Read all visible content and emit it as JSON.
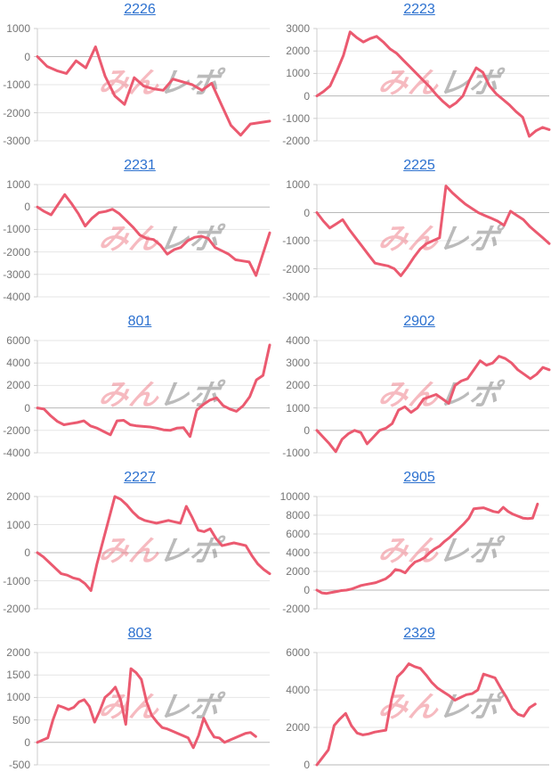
{
  "watermark": {
    "part1": "みん",
    "part2": "レポ",
    "part1_color": "#e95a6a",
    "part2_color": "#8a8a8a"
  },
  "colors": {
    "line": "#eb5a70",
    "title_link": "#2b70cf",
    "grid_line": "#e6e6e6",
    "zero_line": "#b8b8b8",
    "axis_line": "#cccccc",
    "tick_label": "#757575"
  },
  "chart_data": [
    {
      "type": "line",
      "title": "2226",
      "ticks": [
        1000,
        0,
        -1000,
        -2000,
        -3000
      ],
      "ylim": [
        -3000,
        1000
      ],
      "x_end": 1.0,
      "values": [
        0,
        -350,
        -500,
        -600,
        -150,
        -400,
        350,
        -700,
        -1400,
        -1700,
        -750,
        -1050,
        -1150,
        -1200,
        -800,
        -900,
        -1000,
        -1200,
        -950,
        -1700,
        -2450,
        -2800,
        -2400,
        -2350,
        -2300
      ]
    },
    {
      "type": "line",
      "title": "2223",
      "ticks": [
        3000,
        2000,
        1000,
        0,
        -1000,
        -2000
      ],
      "ylim": [
        -2000,
        3000
      ],
      "x_end": 1.0,
      "values": [
        0,
        200,
        450,
        1100,
        1800,
        2850,
        2600,
        2400,
        2550,
        2650,
        2400,
        2100,
        1900,
        1600,
        1300,
        1000,
        700,
        400,
        50,
        -250,
        -500,
        -300,
        0,
        700,
        1250,
        1050,
        450,
        100,
        -150,
        -400,
        -700,
        -950,
        -1800,
        -1550,
        -1400,
        -1500
      ]
    },
    {
      "type": "line",
      "title": "2231",
      "ticks": [
        1000,
        0,
        -1000,
        -2000,
        -3000,
        -4000
      ],
      "ylim": [
        -4000,
        1000
      ],
      "x_end": 1.0,
      "values": [
        0,
        -200,
        -350,
        100,
        550,
        150,
        -300,
        -850,
        -500,
        -250,
        -200,
        -100,
        -300,
        -600,
        -900,
        -1250,
        -1400,
        -1450,
        -1700,
        -2100,
        -1900,
        -1800,
        -1500,
        -1350,
        -1300,
        -1400,
        -1800,
        -1950,
        -2100,
        -2350,
        -2400,
        -2450,
        -3050,
        -2100,
        -1150
      ]
    },
    {
      "type": "line",
      "title": "2225",
      "ticks": [
        1000,
        0,
        -1000,
        -2000,
        -3000
      ],
      "ylim": [
        -3000,
        1000
      ],
      "x_end": 1.0,
      "values": [
        0,
        -300,
        -550,
        -400,
        -250,
        -600,
        -900,
        -1200,
        -1500,
        -1800,
        -1850,
        -1900,
        -2000,
        -2250,
        -1950,
        -1600,
        -1300,
        -1100,
        -1000,
        -900,
        950,
        700,
        500,
        300,
        150,
        0,
        -100,
        -200,
        -300,
        -450,
        50,
        -100,
        -250,
        -500,
        -700,
        -900,
        -1100
      ]
    },
    {
      "type": "line",
      "title": "801",
      "ticks": [
        6000,
        4000,
        2000,
        0,
        -2000,
        -4000
      ],
      "ylim": [
        -4000,
        6000
      ],
      "x_end": 1.0,
      "values": [
        0,
        -100,
        -700,
        -1200,
        -1500,
        -1400,
        -1300,
        -1150,
        -1600,
        -1800,
        -2100,
        -2400,
        -1150,
        -1100,
        -1500,
        -1600,
        -1650,
        -1700,
        -1800,
        -1950,
        -2000,
        -1800,
        -1750,
        -2550,
        -200,
        300,
        700,
        900,
        200,
        -100,
        -300,
        200,
        1000,
        2500,
        2900,
        5600
      ]
    },
    {
      "type": "line",
      "title": "2902",
      "ticks": [
        4000,
        3000,
        2000,
        1000,
        0,
        -1000
      ],
      "ylim": [
        -1000,
        4000
      ],
      "x_end": 1.0,
      "values": [
        0,
        -300,
        -600,
        -950,
        -400,
        -150,
        0,
        -100,
        -600,
        -300,
        0,
        100,
        300,
        900,
        1050,
        800,
        1000,
        1400,
        1500,
        1600,
        1400,
        1200,
        2000,
        2200,
        2300,
        2700,
        3100,
        2900,
        3000,
        3300,
        3200,
        3000,
        2700,
        2500,
        2300,
        2500,
        2800,
        2700
      ]
    },
    {
      "type": "line",
      "title": "2227",
      "ticks": [
        2000,
        1000,
        0,
        -1000,
        -2000
      ],
      "ylim": [
        -2000,
        2000
      ],
      "x_end": 1.0,
      "values": [
        0,
        -150,
        -350,
        -550,
        -750,
        -800,
        -900,
        -950,
        -1100,
        -1350,
        -400,
        400,
        1200,
        2000,
        1900,
        1700,
        1450,
        1250,
        1150,
        1100,
        1050,
        1100,
        1150,
        1100,
        1050,
        1650,
        1250,
        800,
        750,
        850,
        500,
        250,
        300,
        350,
        300,
        250,
        -100,
        -400,
        -600,
        -750
      ]
    },
    {
      "type": "line",
      "title": "2905",
      "ticks": [
        10000,
        8000,
        6000,
        4000,
        2000,
        0,
        -2000
      ],
      "ylim": [
        -2000,
        10000
      ],
      "x_end": 0.95,
      "values": [
        0,
        -300,
        -350,
        -250,
        -150,
        -50,
        0,
        100,
        300,
        500,
        600,
        700,
        800,
        1000,
        1200,
        1600,
        2200,
        2100,
        1850,
        2500,
        3000,
        3200,
        3500,
        4000,
        4400,
        4700,
        5200,
        5600,
        6100,
        6600,
        7100,
        7700,
        8700,
        8750,
        8800,
        8600,
        8400,
        8300,
        8850,
        8400,
        8100,
        7900,
        7700,
        7650,
        7700,
        9200
      ]
    },
    {
      "type": "line",
      "title": "803",
      "ticks": [
        2000,
        1500,
        1000,
        500,
        0,
        -500
      ],
      "ylim": [
        -500,
        2000
      ],
      "x_end": 0.94,
      "values": [
        0,
        50,
        100,
        500,
        820,
        780,
        730,
        780,
        900,
        950,
        800,
        450,
        700,
        1000,
        1100,
        1230,
        950,
        400,
        1640,
        1550,
        1400,
        900,
        600,
        450,
        330,
        300,
        250,
        200,
        150,
        100,
        -120,
        150,
        540,
        300,
        120,
        100,
        0,
        50,
        100,
        150,
        200,
        220,
        130
      ]
    },
    {
      "type": "line",
      "title": "2329",
      "ticks": [
        6000,
        4000,
        2000,
        0
      ],
      "ylim": [
        0,
        6000
      ],
      "x_end": 0.94,
      "values": [
        0,
        400,
        800,
        2100,
        2450,
        2750,
        2100,
        1700,
        1600,
        1650,
        1750,
        1800,
        1850,
        3500,
        4700,
        5000,
        5400,
        5250,
        5150,
        4800,
        4400,
        4100,
        3900,
        3700,
        3450,
        3600,
        3750,
        3800,
        4000,
        4850,
        4750,
        4650,
        4100,
        3600,
        3000,
        2700,
        2600,
        3050,
        3250
      ]
    }
  ]
}
